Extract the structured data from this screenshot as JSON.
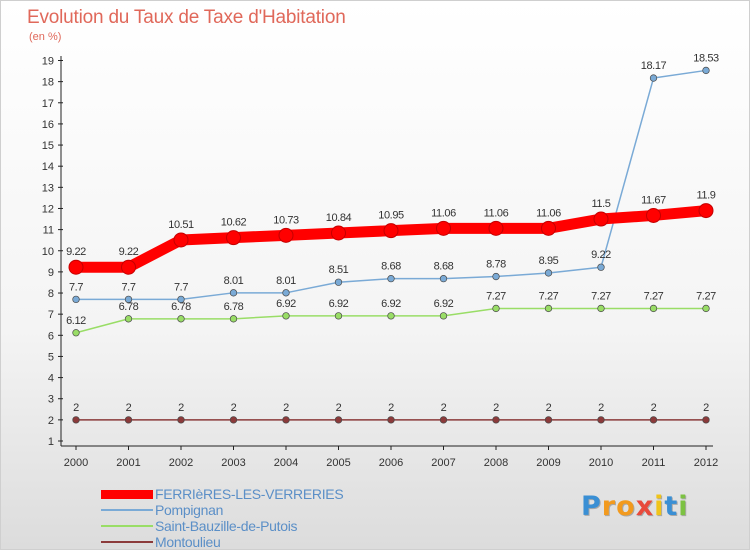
{
  "header": {
    "title": "Evolution du Taux de Taxe d'Habitation",
    "subtitle": "(en %)"
  },
  "logo": {
    "text": "Proxiti",
    "letters": [
      {
        "ch": "P",
        "color": "#3a8fd4"
      },
      {
        "ch": "r",
        "color": "#f29a1e"
      },
      {
        "ch": "o",
        "color": "#f29a1e"
      },
      {
        "ch": "x",
        "color": "#e84a3c"
      },
      {
        "ch": "i",
        "color": "#f0c419"
      },
      {
        "ch": "t",
        "color": "#3a8fd4"
      },
      {
        "ch": "i",
        "color": "#7cc242"
      }
    ]
  },
  "chart_data": {
    "type": "line",
    "title": "Evolution du Taux de Taxe d'Habitation",
    "subtitle": "(en %)",
    "x": [
      "2000",
      "2001",
      "2002",
      "2003",
      "2004",
      "2005",
      "2006",
      "2007",
      "2008",
      "2009",
      "2010",
      "2011",
      "2012"
    ],
    "yticks": [
      "1",
      "2",
      "3",
      "4",
      "5",
      "6",
      "7",
      "8",
      "9",
      "10",
      "11",
      "12",
      "13",
      "14",
      "15",
      "16",
      "17",
      "18",
      "19"
    ],
    "ylim": [
      1,
      19
    ],
    "grid": false,
    "legend_position": "bottom-left",
    "series": [
      {
        "name": "FERRIèRES-LES-VERRERIES",
        "color": "#ff0000",
        "style": "thick",
        "values": [
          9.22,
          9.22,
          10.51,
          10.62,
          10.73,
          10.84,
          10.95,
          11.06,
          11.06,
          11.06,
          11.5,
          11.67,
          11.9
        ],
        "labels": [
          "9.22",
          "9.22",
          "10.51",
          "10.62",
          "10.73",
          "10.84",
          "10.95",
          "11.06",
          "11.06",
          "11.06",
          "11.5",
          "11.67",
          "11.9"
        ]
      },
      {
        "name": "Pompignan",
        "color": "#7aaad6",
        "style": "thin",
        "values": [
          7.7,
          7.7,
          7.7,
          8.01,
          8.01,
          8.51,
          8.68,
          8.68,
          8.78,
          8.95,
          9.22,
          18.17,
          18.53
        ],
        "labels": [
          "7.7",
          "7.7",
          "7.7",
          "8.01",
          "8.01",
          "8.51",
          "8.68",
          "8.68",
          "8.78",
          "8.95",
          "9.22",
          "18.17",
          "18.53"
        ]
      },
      {
        "name": "Saint-Bauzille-de-Putois",
        "color": "#99dd66",
        "style": "thin",
        "values": [
          6.12,
          6.78,
          6.78,
          6.78,
          6.92,
          6.92,
          6.92,
          6.92,
          7.27,
          7.27,
          7.27,
          7.27,
          7.27
        ],
        "labels": [
          "6.12",
          "6.78",
          "6.78",
          "6.78",
          "6.92",
          "6.92",
          "6.92",
          "6.92",
          "7.27",
          "7.27",
          "7.27",
          "7.27",
          "7.27"
        ]
      },
      {
        "name": "Montoulieu",
        "color": "#8b3a3a",
        "style": "thin",
        "values": [
          2,
          2,
          2,
          2,
          2,
          2,
          2,
          2,
          2,
          2,
          2,
          2,
          2
        ],
        "labels": [
          "2",
          "2",
          "2",
          "2",
          "2",
          "2",
          "2",
          "2",
          "2",
          "2",
          "2",
          "2",
          "2"
        ]
      }
    ]
  }
}
